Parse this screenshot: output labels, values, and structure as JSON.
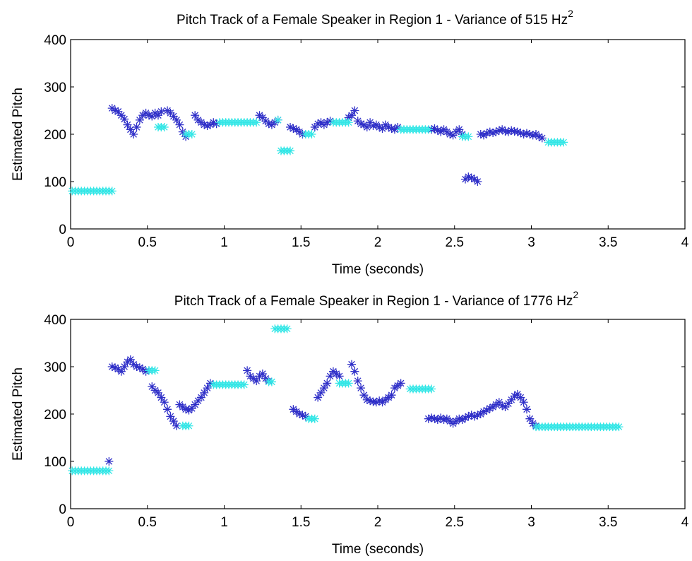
{
  "chart_data": [
    {
      "type": "scatter",
      "title": "Pitch Track of a Female Speaker in Region 1 - Variance of 515 Hz",
      "title_superscript": "2",
      "xlabel": "Time (seconds)",
      "ylabel": "Estimated Pitch",
      "xlim": [
        0,
        4
      ],
      "ylim": [
        0,
        400
      ],
      "xticks": [
        "0",
        "0.5",
        "1",
        "1.5",
        "2",
        "2.5",
        "3",
        "3.5",
        "4"
      ],
      "yticks": [
        "0",
        "100",
        "200",
        "300",
        "400"
      ],
      "grid": false,
      "legend": "none",
      "marker": "*",
      "series": [
        {
          "color": "#2f2fc8",
          "x": [
            0.27,
            0.29,
            0.31,
            0.33,
            0.35,
            0.37,
            0.39,
            0.41,
            0.43,
            0.45,
            0.47,
            0.49,
            0.51,
            0.53,
            0.55,
            0.57,
            0.59,
            0.63,
            0.65,
            0.67,
            0.69,
            0.71,
            0.73,
            0.75,
            0.81,
            0.83,
            0.85,
            0.87,
            0.89,
            0.91,
            0.93,
            0.95,
            1.23,
            1.25,
            1.27,
            1.29,
            1.31,
            1.33,
            1.35,
            1.43,
            1.45,
            1.47,
            1.49,
            1.51,
            1.59,
            1.61,
            1.63,
            1.65,
            1.67,
            1.69,
            1.81,
            1.83,
            1.85,
            1.87,
            1.89,
            1.91,
            1.93,
            1.95,
            1.97,
            1.99,
            2.01,
            2.03,
            2.05,
            2.07,
            2.09,
            2.11,
            2.13,
            2.35,
            2.37,
            2.39,
            2.41,
            2.43,
            2.45,
            2.47,
            2.49,
            2.51,
            2.53,
            2.55,
            2.57,
            2.59,
            2.61,
            2.63,
            2.65,
            2.67,
            2.69,
            2.71,
            2.73,
            2.75,
            2.77,
            2.79,
            2.81,
            2.83,
            2.85,
            2.87,
            2.89,
            2.91,
            2.93,
            2.95,
            2.97,
            2.99,
            3.01,
            3.03,
            3.05,
            3.07
          ],
          "y": [
            255,
            250,
            248,
            240,
            232,
            220,
            210,
            200,
            215,
            230,
            240,
            245,
            240,
            238,
            245,
            240,
            248,
            250,
            245,
            238,
            230,
            220,
            205,
            195,
            240,
            230,
            225,
            220,
            218,
            220,
            225,
            222,
            240,
            235,
            228,
            222,
            220,
            225,
            230,
            215,
            212,
            210,
            205,
            200,
            215,
            222,
            225,
            220,
            225,
            228,
            235,
            240,
            250,
            228,
            222,
            220,
            215,
            225,
            218,
            220,
            215,
            212,
            220,
            215,
            212,
            210,
            215,
            210,
            212,
            208,
            205,
            210,
            205,
            200,
            198,
            205,
            210,
            200,
            105,
            110,
            108,
            105,
            100,
            200,
            198,
            202,
            205,
            203,
            205,
            208,
            210,
            206,
            205,
            208,
            206,
            205,
            203,
            200,
            202,
            200,
            198,
            200,
            195,
            192
          ]
        },
        {
          "color": "#32e6e6",
          "x": [
            0.01,
            0.03,
            0.05,
            0.07,
            0.09,
            0.11,
            0.13,
            0.15,
            0.17,
            0.19,
            0.21,
            0.23,
            0.25,
            0.27,
            0.57,
            0.59,
            0.61,
            0.75,
            0.77,
            0.79,
            0.97,
            0.99,
            1.01,
            1.03,
            1.05,
            1.07,
            1.09,
            1.11,
            1.13,
            1.15,
            1.17,
            1.19,
            1.21,
            1.35,
            1.37,
            1.39,
            1.41,
            1.43,
            1.53,
            1.55,
            1.57,
            1.71,
            1.73,
            1.75,
            1.77,
            1.79,
            1.81,
            2.15,
            2.17,
            2.19,
            2.21,
            2.23,
            2.25,
            2.27,
            2.29,
            2.31,
            2.33,
            2.55,
            2.57,
            2.59,
            3.11,
            3.13,
            3.15,
            3.17,
            3.19,
            3.21
          ],
          "y": [
            80,
            80,
            80,
            80,
            80,
            80,
            80,
            80,
            80,
            80,
            80,
            80,
            80,
            80,
            215,
            215,
            215,
            200,
            200,
            200,
            225,
            225,
            225,
            225,
            225,
            225,
            225,
            225,
            225,
            225,
            225,
            225,
            225,
            230,
            165,
            165,
            165,
            165,
            200,
            200,
            200,
            225,
            225,
            225,
            225,
            225,
            225,
            210,
            210,
            210,
            210,
            210,
            210,
            210,
            210,
            210,
            210,
            195,
            195,
            195,
            183,
            183,
            183,
            183,
            183,
            183
          ]
        }
      ]
    },
    {
      "type": "scatter",
      "title": "Pitch Track of a Female Speaker in Region 1 - Variance of 1776 Hz",
      "title_superscript": "2",
      "xlabel": "Time (seconds)",
      "ylabel": "Estimated Pitch",
      "xlim": [
        0,
        4
      ],
      "ylim": [
        0,
        400
      ],
      "xticks": [
        "0",
        "0.5",
        "1",
        "1.5",
        "2",
        "2.5",
        "3",
        "3.5",
        "4"
      ],
      "yticks": [
        "0",
        "100",
        "200",
        "300",
        "400"
      ],
      "grid": false,
      "legend": "none",
      "marker": "*",
      "series": [
        {
          "color": "#2f2fc8",
          "x": [
            0.25,
            0.27,
            0.29,
            0.31,
            0.33,
            0.35,
            0.37,
            0.39,
            0.41,
            0.43,
            0.45,
            0.47,
            0.49,
            0.51,
            0.53,
            0.55,
            0.57,
            0.59,
            0.61,
            0.63,
            0.65,
            0.67,
            0.69,
            0.71,
            0.73,
            0.75,
            0.77,
            0.79,
            0.81,
            0.83,
            0.85,
            0.87,
            0.89,
            0.91,
            1.15,
            1.17,
            1.19,
            1.21,
            1.23,
            1.25,
            1.27,
            1.29,
            1.45,
            1.47,
            1.49,
            1.51,
            1.53,
            1.61,
            1.63,
            1.65,
            1.67,
            1.69,
            1.71,
            1.73,
            1.75,
            1.83,
            1.85,
            1.87,
            1.89,
            1.91,
            1.93,
            1.95,
            1.97,
            1.99,
            2.01,
            2.03,
            2.05,
            2.07,
            2.09,
            2.11,
            2.13,
            2.15,
            2.33,
            2.35,
            2.37,
            2.39,
            2.41,
            2.43,
            2.45,
            2.47,
            2.49,
            2.51,
            2.53,
            2.55,
            2.57,
            2.59,
            2.61,
            2.63,
            2.65,
            2.67,
            2.69,
            2.71,
            2.73,
            2.75,
            2.77,
            2.79,
            2.81,
            2.83,
            2.85,
            2.87,
            2.89,
            2.91,
            2.93,
            2.95,
            2.97,
            2.99,
            3.01,
            3.03
          ],
          "y": [
            100,
            300,
            298,
            295,
            290,
            300,
            310,
            315,
            305,
            300,
            298,
            295,
            290,
            292,
            258,
            250,
            245,
            235,
            225,
            210,
            195,
            185,
            175,
            220,
            215,
            210,
            208,
            212,
            220,
            228,
            235,
            245,
            255,
            265,
            292,
            280,
            275,
            270,
            280,
            285,
            275,
            270,
            210,
            205,
            200,
            198,
            195,
            235,
            245,
            255,
            265,
            280,
            290,
            285,
            280,
            305,
            290,
            270,
            255,
            240,
            230,
            228,
            226,
            225,
            228,
            225,
            230,
            235,
            240,
            255,
            260,
            265,
            190,
            192,
            190,
            188,
            192,
            188,
            190,
            185,
            180,
            185,
            190,
            188,
            192,
            195,
            198,
            195,
            198,
            200,
            205,
            208,
            212,
            215,
            220,
            225,
            218,
            215,
            222,
            230,
            238,
            242,
            235,
            225,
            210,
            190,
            180,
            175
          ]
        },
        {
          "color": "#32e6e6",
          "x": [
            0.01,
            0.03,
            0.05,
            0.07,
            0.09,
            0.11,
            0.13,
            0.15,
            0.17,
            0.19,
            0.21,
            0.23,
            0.25,
            0.51,
            0.53,
            0.55,
            0.73,
            0.75,
            0.77,
            0.93,
            0.95,
            0.97,
            0.99,
            1.01,
            1.03,
            1.05,
            1.07,
            1.09,
            1.11,
            1.13,
            1.29,
            1.31,
            1.33,
            1.35,
            1.37,
            1.39,
            1.41,
            1.55,
            1.57,
            1.59,
            1.75,
            1.77,
            1.79,
            1.81,
            2.21,
            2.23,
            2.25,
            2.27,
            2.29,
            2.31,
            2.33,
            2.35,
            3.03,
            3.05,
            3.07,
            3.09,
            3.11,
            3.13,
            3.15,
            3.17,
            3.19,
            3.21,
            3.23,
            3.25,
            3.27,
            3.29,
            3.31,
            3.33,
            3.35,
            3.37,
            3.39,
            3.41,
            3.43,
            3.45,
            3.47,
            3.49,
            3.51,
            3.53,
            3.55,
            3.57
          ],
          "y": [
            80,
            80,
            80,
            80,
            80,
            80,
            80,
            80,
            80,
            80,
            80,
            80,
            80,
            292,
            292,
            292,
            175,
            175,
            175,
            262,
            262,
            262,
            262,
            262,
            262,
            262,
            262,
            262,
            262,
            262,
            268,
            268,
            380,
            380,
            380,
            380,
            380,
            190,
            190,
            190,
            265,
            265,
            265,
            265,
            253,
            253,
            253,
            253,
            253,
            253,
            253,
            253,
            173,
            173,
            173,
            173,
            173,
            173,
            173,
            173,
            173,
            173,
            173,
            173,
            173,
            173,
            173,
            173,
            173,
            173,
            173,
            173,
            173,
            173,
            173,
            173,
            173,
            173,
            173,
            173
          ]
        }
      ]
    }
  ]
}
